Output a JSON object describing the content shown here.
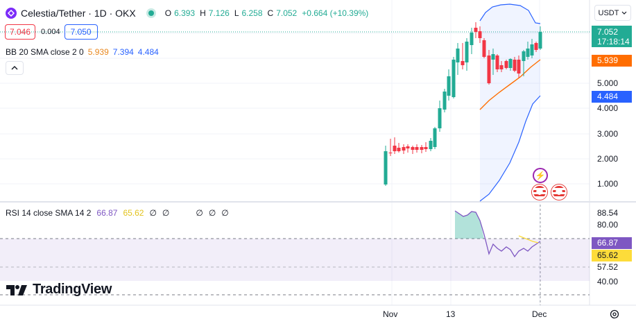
{
  "header": {
    "title": "Celestia/Tether · 1D · OKX",
    "open_label": "O",
    "open": "6.393",
    "high_label": "H",
    "high": "7.126",
    "low_label": "L",
    "low": "6.258",
    "close_label": "C",
    "close": "7.052",
    "change": "+0.664 (+10.39%)"
  },
  "quote": {
    "bid": "7.046",
    "spread": "0.004",
    "ask": "7.050"
  },
  "bb_legend": {
    "label": "BB 20 SMA close 2 0",
    "basis": "5.939",
    "upper": "7.394",
    "lower": "4.484"
  },
  "rsi_legend": {
    "label": "RSI 14 close SMA 14 2",
    "rsi": "66.87",
    "rsi_ma": "65.62",
    "z1": "∅",
    "z2": "∅",
    "z3": "∅",
    "z4": "∅",
    "z5": "∅"
  },
  "currency": "USDT",
  "price_axis": [
    "5.000",
    "4.000",
    "3.000",
    "2.000",
    "1.000"
  ],
  "badges": {
    "last_price": "7.052",
    "countdown": "17:18:14",
    "bb_basis": "5.939",
    "bb_lower": "4.484",
    "rsi": "66.87",
    "rsi_ma": "65.62"
  },
  "rsi_axis": [
    "88.54",
    "80.00",
    "57.52",
    "40.00"
  ],
  "time_axis": [
    "Nov",
    "13",
    "Dec"
  ],
  "brand": "TradingView",
  "colors": {
    "up": "#22ab94",
    "down": "#f23645",
    "bb_basis": "#ff6d00",
    "bb_band": "#2962ff",
    "rsi": "#7e57c2",
    "rsi_ma": "#fddc3a"
  },
  "icons": [
    "celestia-logo-icon",
    "live-status-icon",
    "chevron-up-icon",
    "chevron-down-icon",
    "settings-icon",
    "lightning-event-icon",
    "us-flag-event-icon",
    "tradingview-logo-icon"
  ]
}
